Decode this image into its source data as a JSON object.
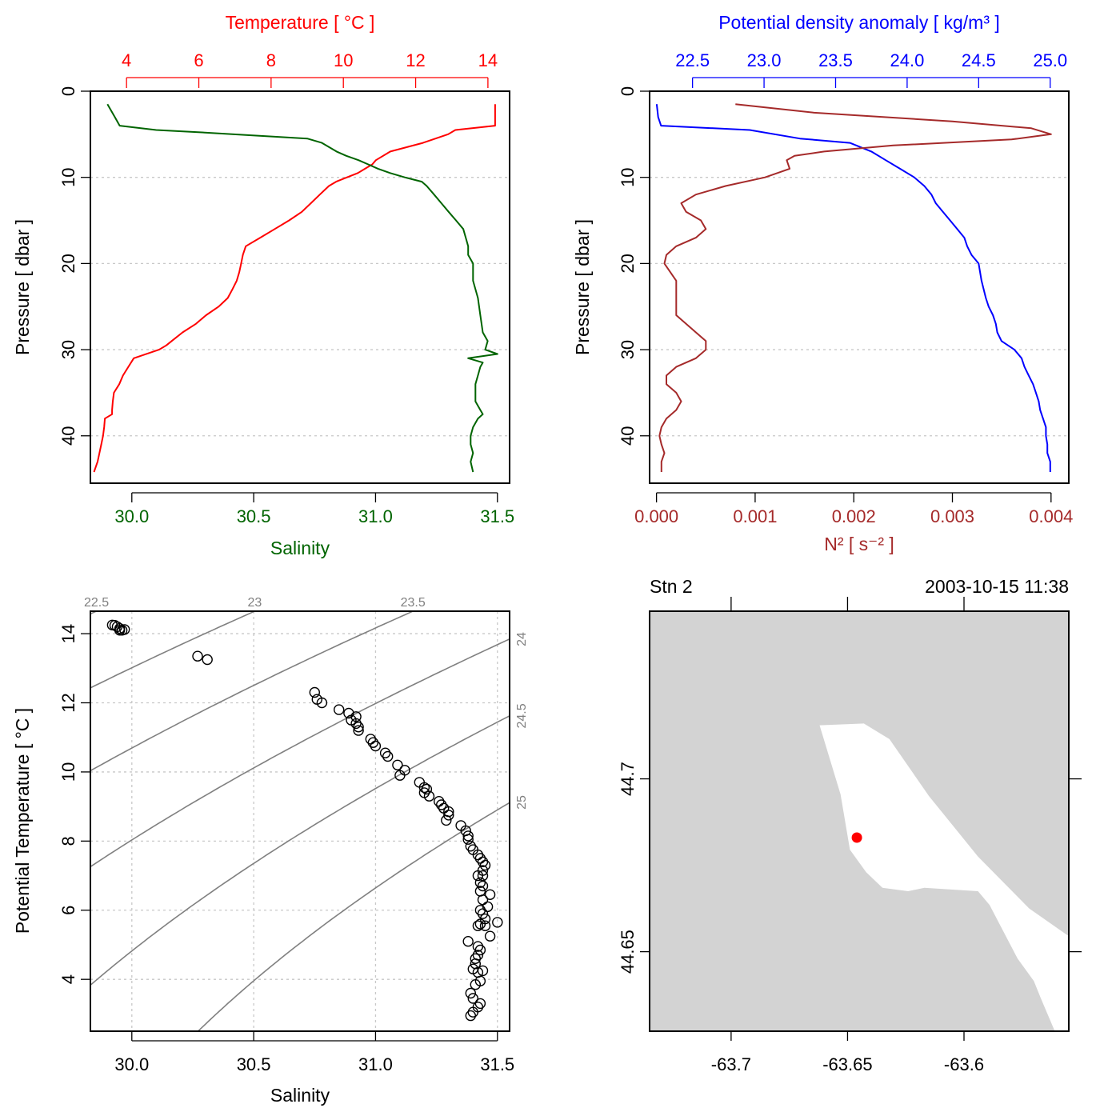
{
  "chart_data": [
    {
      "type": "line",
      "panel": "temperature-salinity-profile",
      "ylabel": "Pressure [ dbar ]",
      "ylim": [
        45.5,
        0
      ],
      "yticks": [
        0,
        10,
        20,
        30,
        40
      ],
      "top_axis": {
        "label": "Temperature [ °C ]",
        "color": "#ff0000",
        "lim": [
          3.0,
          14.6
        ],
        "ticks": [
          4,
          6,
          8,
          10,
          12,
          14
        ]
      },
      "bottom_axis": {
        "label": "Salinity",
        "color": "#006400",
        "lim": [
          29.83,
          31.55
        ],
        "ticks": [
          "30.0",
          "30.5",
          "31.0",
          "31.5"
        ]
      },
      "grid": "horizontal dashed",
      "series": [
        {
          "axis": "top",
          "color": "#ff0000",
          "y": [
            1.5,
            4.0,
            4.5,
            5.0,
            6.0,
            7.0,
            8.0,
            8.5,
            9.0,
            9.5,
            10.0,
            10.5,
            11.0,
            12.0,
            13.0,
            14.0,
            15.0,
            16.0,
            17.0,
            18.0,
            19.0,
            20.0,
            21.0,
            22.0,
            23.0,
            24.0,
            25.0,
            26.0,
            27.0,
            28.0,
            29.0,
            29.5,
            30.0,
            31.0,
            32.0,
            33.0,
            34.0,
            35.0,
            36.0,
            37.0,
            37.5,
            38.0,
            39.0,
            40.0,
            41.0,
            42.0,
            43.0,
            44.2
          ],
          "x": [
            14.2,
            14.2,
            13.1,
            12.9,
            12.2,
            11.3,
            10.9,
            10.8,
            10.6,
            10.4,
            10.1,
            9.8,
            9.6,
            9.35,
            9.1,
            8.85,
            8.5,
            8.1,
            7.7,
            7.3,
            7.22,
            7.17,
            7.12,
            7.05,
            6.93,
            6.8,
            6.55,
            6.2,
            5.92,
            5.55,
            5.25,
            5.1,
            4.9,
            4.2,
            4.05,
            3.9,
            3.8,
            3.65,
            3.62,
            3.6,
            3.6,
            3.4,
            3.38,
            3.35,
            3.3,
            3.25,
            3.2,
            3.1
          ]
        },
        {
          "axis": "bottom",
          "color": "#006400",
          "y": [
            1.5,
            3.0,
            4.0,
            4.5,
            4.8,
            5.5,
            6.0,
            7.0,
            7.5,
            8.0,
            8.5,
            9.0,
            9.5,
            10.0,
            10.5,
            11.0,
            12.0,
            13.0,
            14.0,
            15.0,
            16.0,
            17.0,
            18.0,
            19.0,
            20.0,
            22.0,
            24.0,
            26.0,
            28.0,
            29.0,
            30.0,
            30.5,
            31.0,
            31.5,
            32.0,
            33.0,
            34.0,
            35.0,
            36.0,
            37.0,
            37.5,
            38.0,
            39.0,
            40.0,
            41.0,
            42.0,
            43.0,
            44.2
          ],
          "x": [
            29.9,
            29.93,
            29.95,
            30.1,
            30.3,
            30.72,
            30.78,
            30.84,
            30.88,
            30.93,
            30.97,
            31.01,
            31.06,
            31.12,
            31.19,
            31.21,
            31.24,
            31.27,
            31.3,
            31.33,
            31.36,
            31.37,
            31.38,
            31.38,
            31.4,
            31.4,
            31.42,
            31.43,
            31.44,
            31.46,
            31.45,
            31.5,
            31.38,
            31.44,
            31.43,
            31.42,
            31.41,
            31.41,
            31.41,
            31.43,
            31.44,
            31.42,
            31.4,
            31.39,
            31.39,
            31.4,
            31.39,
            31.4
          ]
        }
      ]
    },
    {
      "type": "line",
      "panel": "density-n2-profile",
      "ylabel": "Pressure [ dbar ]",
      "ylim": [
        45.5,
        0
      ],
      "yticks": [
        0,
        10,
        20,
        30,
        40
      ],
      "top_axis": {
        "label": "Potential density anomaly [ kg/m³ ]",
        "color": "#0000ff",
        "lim": [
          22.2,
          25.13
        ],
        "ticks": [
          "22.5",
          "23.0",
          "23.5",
          "24.0",
          "24.5",
          "25.0"
        ]
      },
      "bottom_axis": {
        "label": "N² [ s⁻² ]",
        "color": "#a52a2a",
        "lim": [
          -7e-05,
          0.00418
        ],
        "ticks": [
          "0.000",
          "0.001",
          "0.002",
          "0.003",
          "0.004"
        ]
      },
      "grid": "horizontal dashed",
      "series": [
        {
          "axis": "top",
          "color": "#0000ff",
          "y": [
            1.5,
            3.0,
            4.0,
            4.5,
            5.5,
            6.0,
            7.0,
            8.0,
            9.0,
            10.0,
            11.0,
            12.0,
            13.0,
            14.0,
            15.0,
            16.0,
            17.0,
            18.0,
            19.0,
            20.0,
            22.0,
            24.0,
            25.0,
            26.0,
            27.0,
            28.0,
            29.0,
            30.0,
            31.0,
            32.0,
            33.0,
            34.0,
            35.0,
            36.0,
            37.0,
            38.0,
            39.0,
            40.0,
            41.0,
            42.0,
            43.0,
            44.2
          ],
          "x": [
            22.25,
            22.26,
            22.28,
            22.9,
            23.25,
            23.6,
            23.75,
            23.85,
            23.95,
            24.05,
            24.12,
            24.17,
            24.2,
            24.25,
            24.3,
            24.35,
            24.4,
            24.42,
            24.45,
            24.5,
            24.52,
            24.55,
            24.57,
            24.6,
            24.62,
            24.63,
            24.66,
            24.75,
            24.8,
            24.82,
            24.85,
            24.88,
            24.9,
            24.92,
            24.93,
            24.95,
            24.97,
            24.97,
            24.98,
            24.98,
            25.0,
            25.0
          ]
        },
        {
          "axis": "bottom",
          "color": "#a52a2a",
          "y": [
            1.5,
            2.5,
            3.5,
            4.3,
            5.0,
            5.6,
            6.3,
            7.0,
            7.5,
            8.0,
            9.0,
            10.0,
            11.0,
            12.0,
            13.0,
            14.0,
            15.0,
            16.0,
            17.0,
            18.0,
            19.0,
            20.0,
            22.0,
            24.0,
            26.0,
            27.0,
            28.0,
            29.0,
            30.0,
            31.0,
            32.0,
            33.0,
            34.0,
            35.0,
            36.0,
            37.0,
            38.0,
            39.0,
            40.0,
            41.0,
            42.0,
            43.0,
            44.2
          ],
          "x": [
            0.0008,
            0.0016,
            0.003,
            0.0038,
            0.004,
            0.0036,
            0.0024,
            0.0017,
            0.0014,
            0.00132,
            0.00135,
            0.0011,
            0.0007,
            0.0004,
            0.00025,
            0.0003,
            0.00045,
            0.0005,
            0.0004,
            0.0002,
            0.0001,
            8e-05,
            0.0002,
            0.0002,
            0.0002,
            0.0003,
            0.0004,
            0.0005,
            0.0005,
            0.0004,
            0.0002,
            0.0001,
            0.0001,
            0.0002,
            0.00025,
            0.0002,
            0.0001,
            5e-05,
            3e-05,
            5e-05,
            8e-05,
            5e-05,
            5e-05
          ]
        }
      ]
    },
    {
      "type": "scatter",
      "panel": "ts-diagram",
      "xlabel": "Salinity",
      "ylabel": "Potential Temperature [ °C ]",
      "xlim": [
        29.83,
        31.55
      ],
      "ylim": [
        2.5,
        14.65
      ],
      "xticks": [
        "30.0",
        "30.5",
        "31.0",
        "31.5"
      ],
      "yticks": [
        4,
        6,
        8,
        10,
        12,
        14
      ],
      "grid": "dashed",
      "isopycnal_labels": [
        "22.5",
        "23",
        "23.5",
        "24",
        "24.5",
        "25"
      ],
      "x": [
        29.92,
        29.93,
        29.94,
        29.95,
        29.97,
        29.96,
        29.95,
        30.27,
        30.31,
        30.75,
        30.76,
        30.78,
        30.85,
        30.89,
        30.9,
        30.92,
        30.93,
        30.93,
        30.92,
        30.98,
        30.99,
        31.0,
        31.04,
        31.05,
        31.09,
        31.1,
        31.12,
        31.18,
        31.2,
        31.21,
        31.22,
        31.2,
        31.26,
        31.27,
        31.28,
        31.3,
        31.29,
        31.3,
        31.35,
        31.37,
        31.38,
        31.38,
        31.39,
        31.4,
        31.42,
        31.43,
        31.44,
        31.45,
        31.44,
        31.44,
        31.42,
        31.43,
        31.44,
        31.43,
        31.47,
        31.44,
        31.46,
        31.43,
        31.44,
        31.45,
        31.42,
        31.43,
        31.45,
        31.5,
        31.47,
        31.38,
        31.42,
        31.43,
        31.42,
        31.41,
        31.41,
        31.4,
        31.44,
        31.42,
        31.43,
        31.41,
        31.39,
        31.4,
        31.43,
        31.42,
        31.4,
        31.39
      ],
      "y": [
        14.25,
        14.24,
        14.2,
        14.15,
        14.12,
        14.1,
        14.1,
        13.35,
        13.25,
        12.3,
        12.1,
        12.0,
        11.8,
        11.7,
        11.5,
        11.4,
        11.3,
        11.2,
        11.6,
        10.95,
        10.85,
        10.75,
        10.55,
        10.45,
        10.2,
        9.9,
        10.05,
        9.7,
        9.55,
        9.5,
        9.3,
        9.4,
        9.15,
        9.05,
        8.95,
        8.85,
        8.6,
        8.75,
        8.45,
        8.3,
        8.15,
        8.05,
        7.85,
        7.75,
        7.6,
        7.5,
        7.4,
        7.3,
        7.15,
        7.0,
        7.0,
        6.8,
        6.7,
        6.55,
        6.45,
        6.3,
        6.1,
        6.0,
        5.9,
        5.75,
        5.55,
        5.6,
        5.55,
        5.65,
        5.25,
        5.1,
        4.95,
        4.85,
        4.7,
        4.6,
        4.45,
        4.3,
        4.25,
        4.2,
        3.95,
        3.85,
        3.6,
        3.45,
        3.3,
        3.2,
        3.05,
        2.95
      ]
    },
    {
      "type": "scatter",
      "panel": "station-map",
      "title_left": "Stn 2",
      "title_right": "2003-10-15 11:38",
      "xlim": [
        -63.735,
        -63.555
      ],
      "ylim": [
        44.627,
        44.7485
      ],
      "xticks": [
        "-63.7",
        "-63.65",
        "-63.6"
      ],
      "yticks": [
        "44.7",
        "44.65"
      ],
      "land_color": "#d3d3d3",
      "water_color": "#ffffff",
      "station": {
        "lon": -63.646,
        "lat": 44.683,
        "color": "#ff0000"
      },
      "water_polygon_lonlat": [
        [
          -63.662,
          44.7155
        ],
        [
          -63.643,
          44.716
        ],
        [
          -63.632,
          44.7115
        ],
        [
          -63.615,
          44.695
        ],
        [
          -63.594,
          44.6775
        ],
        [
          -63.572,
          44.6625
        ],
        [
          -63.555,
          44.6545
        ],
        [
          -63.555,
          44.627
        ],
        [
          -63.561,
          44.627
        ],
        [
          -63.567,
          44.6365
        ],
        [
          -63.57,
          44.6415
        ],
        [
          -63.577,
          44.648
        ],
        [
          -63.589,
          44.6635
        ],
        [
          -63.594,
          44.6675
        ],
        [
          -63.617,
          44.6685
        ],
        [
          -63.624,
          44.6675
        ],
        [
          -63.635,
          44.6685
        ],
        [
          -63.642,
          44.673
        ],
        [
          -63.649,
          44.6795
        ],
        [
          -63.653,
          44.6955
        ]
      ]
    }
  ]
}
